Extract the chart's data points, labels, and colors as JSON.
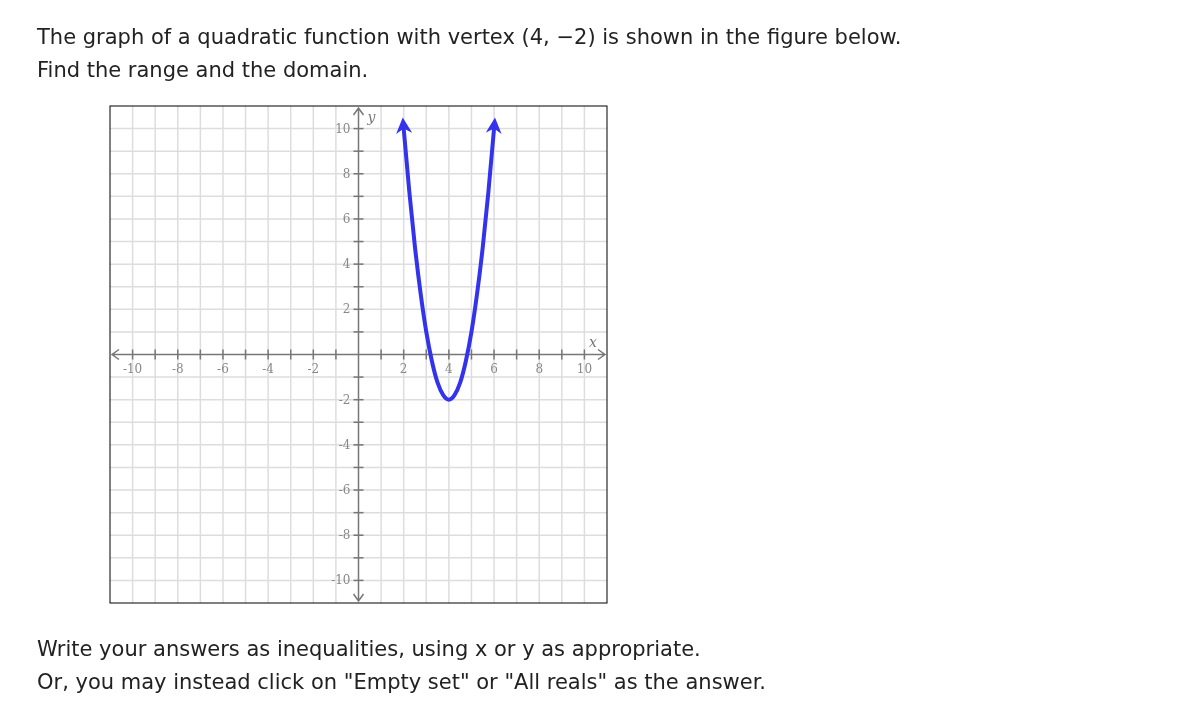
{
  "chart_data": {
    "type": "line",
    "title": "The graph of a quadratic function with vertex (4, −2) is shown in the figure below.",
    "subtitle": "Find the range and the domain.",
    "xlabel": "x",
    "ylabel": "y",
    "annotations": [
      "Write your answers as inequalities, using x or y as appropriate.",
      "Or, you may instead click on \"Empty set\" or \"All reals\" as the answer."
    ],
    "series": [
      {
        "color": "#3333ee",
        "x": [
          2,
          2.25,
          2.5,
          2.75,
          3,
          3.25,
          3.5,
          3.75,
          4,
          4.25,
          4.5,
          4.75,
          5,
          5.25,
          5.5,
          5.75,
          6
        ],
        "values": [
          10,
          7.2,
          4.75,
          2.7,
          1,
          -0.3,
          -1.25,
          -1.8,
          -2,
          -1.8,
          -1.25,
          -0.3,
          1,
          2.7,
          4.75,
          7.2,
          10
        ]
      }
    ],
    "xlim": [
      -11,
      11
    ],
    "ylim": [
      -11,
      11
    ],
    "xticks": [
      -10,
      {
        "value": -9,
        "label": null
      },
      -8,
      {
        "value": -7,
        "label": null
      },
      -6,
      {
        "value": -5,
        "label": null
      },
      -4,
      {
        "value": -3,
        "label": null
      },
      -2,
      {
        "value": -1,
        "label": null
      },
      {
        "value": 1,
        "label": null
      },
      2,
      {
        "value": 3,
        "label": null
      },
      4,
      {
        "value": 5,
        "label": null
      },
      6,
      {
        "value": 7,
        "label": null
      },
      8,
      {
        "value": 9,
        "label": null
      },
      10
    ],
    "yticks": [
      -10,
      {
        "value": -9,
        "label": null
      },
      -8,
      {
        "value": -7,
        "label": null
      },
      -6,
      {
        "value": -5,
        "label": null
      },
      -4,
      {
        "value": -3,
        "label": null
      },
      -2,
      {
        "value": -1,
        "label": null
      },
      {
        "value": 1,
        "label": null
      },
      2,
      {
        "value": 3,
        "label": null
      },
      4,
      {
        "value": 5,
        "label": null
      },
      6,
      {
        "value": 7,
        "label": null
      },
      8,
      {
        "value": 9,
        "label": null
      },
      10
    ],
    "grid": true,
    "marker": "none",
    "line_style": "solid"
  }
}
